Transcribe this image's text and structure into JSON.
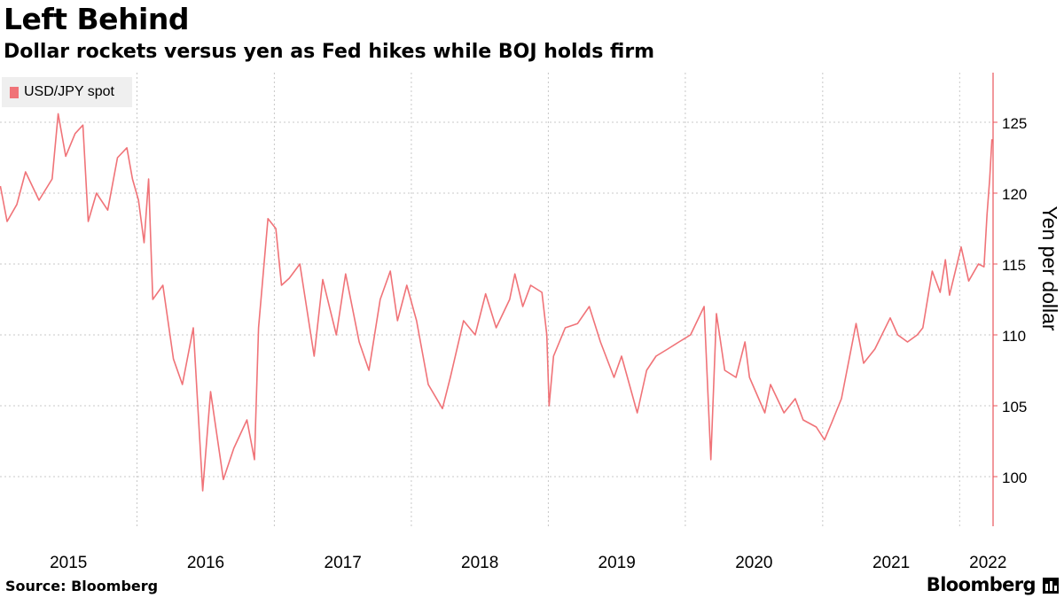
{
  "header": {
    "title": "Left Behind",
    "subtitle": "Dollar rockets versus yen as Fed hikes while BOJ holds firm"
  },
  "footer": {
    "source": "Source: Bloomberg",
    "brand": "Bloomberg"
  },
  "colors": {
    "series": "#f07378",
    "grid": "#c8c8c8",
    "axis": "#e8555b",
    "legend_bg": "#efefef"
  },
  "chart_data": {
    "type": "line",
    "title": "Left Behind",
    "subtitle": "Dollar rockets versus yen as Fed hikes while BOJ holds firm",
    "ylabel": "Yen per dollar",
    "xlabel": "",
    "ylim": [
      96.5,
      128.5
    ],
    "xlim": [
      "2015-01-01",
      "2022-03-31"
    ],
    "y_ticks": [
      100,
      105,
      110,
      115,
      120,
      125
    ],
    "x_ticks": [
      "2015",
      "2016",
      "2017",
      "2018",
      "2019",
      "2020",
      "2021",
      "2022"
    ],
    "grid": true,
    "legend_position": "top-left",
    "series": [
      {
        "name": "USD/JPY spot",
        "points": [
          [
            "2015-01-02",
            120.5
          ],
          [
            "2015-01-20",
            118.0
          ],
          [
            "2015-02-15",
            119.2
          ],
          [
            "2015-03-10",
            121.5
          ],
          [
            "2015-04-15",
            119.5
          ],
          [
            "2015-05-20",
            121.0
          ],
          [
            "2015-06-05",
            125.6
          ],
          [
            "2015-06-25",
            122.6
          ],
          [
            "2015-07-20",
            124.2
          ],
          [
            "2015-08-10",
            124.8
          ],
          [
            "2015-08-24",
            118.0
          ],
          [
            "2015-09-15",
            120.0
          ],
          [
            "2015-10-15",
            118.8
          ],
          [
            "2015-11-10",
            122.5
          ],
          [
            "2015-12-05",
            123.2
          ],
          [
            "2015-12-20",
            121.0
          ],
          [
            "2016-01-05",
            119.5
          ],
          [
            "2016-01-20",
            116.5
          ],
          [
            "2016-02-01",
            121.0
          ],
          [
            "2016-02-12",
            112.5
          ],
          [
            "2016-03-10",
            113.5
          ],
          [
            "2016-04-07",
            108.3
          ],
          [
            "2016-05-01",
            106.5
          ],
          [
            "2016-05-30",
            110.5
          ],
          [
            "2016-06-24",
            99.0
          ],
          [
            "2016-07-15",
            106.0
          ],
          [
            "2016-08-18",
            99.8
          ],
          [
            "2016-09-15",
            102.0
          ],
          [
            "2016-10-20",
            104.0
          ],
          [
            "2016-11-09",
            101.2
          ],
          [
            "2016-11-20",
            110.5
          ],
          [
            "2016-12-15",
            118.2
          ],
          [
            "2017-01-05",
            117.5
          ],
          [
            "2017-01-20",
            113.5
          ],
          [
            "2017-02-10",
            114.0
          ],
          [
            "2017-03-10",
            115.0
          ],
          [
            "2017-04-17",
            108.5
          ],
          [
            "2017-05-10",
            113.9
          ],
          [
            "2017-06-15",
            110.0
          ],
          [
            "2017-07-10",
            114.3
          ],
          [
            "2017-08-15",
            109.5
          ],
          [
            "2017-09-10",
            107.5
          ],
          [
            "2017-10-10",
            112.5
          ],
          [
            "2017-11-06",
            114.5
          ],
          [
            "2017-11-25",
            111.0
          ],
          [
            "2017-12-20",
            113.5
          ],
          [
            "2018-01-15",
            111.0
          ],
          [
            "2018-02-15",
            106.5
          ],
          [
            "2018-03-25",
            104.8
          ],
          [
            "2018-04-15",
            107.0
          ],
          [
            "2018-05-20",
            111.0
          ],
          [
            "2018-06-20",
            110.0
          ],
          [
            "2018-07-18",
            112.9
          ],
          [
            "2018-08-15",
            110.5
          ],
          [
            "2018-09-20",
            112.5
          ],
          [
            "2018-10-04",
            114.3
          ],
          [
            "2018-10-25",
            112.0
          ],
          [
            "2018-11-15",
            113.5
          ],
          [
            "2018-12-15",
            113.0
          ],
          [
            "2018-12-28",
            110.0
          ],
          [
            "2019-01-03",
            105.0
          ],
          [
            "2019-01-15",
            108.5
          ],
          [
            "2019-02-15",
            110.5
          ],
          [
            "2019-03-20",
            110.8
          ],
          [
            "2019-04-20",
            112.0
          ],
          [
            "2019-05-20",
            109.5
          ],
          [
            "2019-06-25",
            107.0
          ],
          [
            "2019-07-15",
            108.5
          ],
          [
            "2019-08-26",
            104.5
          ],
          [
            "2019-09-20",
            107.5
          ],
          [
            "2019-10-15",
            108.5
          ],
          [
            "2019-11-15",
            109.0
          ],
          [
            "2019-12-15",
            109.5
          ],
          [
            "2020-01-15",
            110.0
          ],
          [
            "2020-02-20",
            112.0
          ],
          [
            "2020-03-09",
            101.2
          ],
          [
            "2020-03-24",
            111.5
          ],
          [
            "2020-04-15",
            107.5
          ],
          [
            "2020-05-15",
            107.0
          ],
          [
            "2020-06-08",
            109.5
          ],
          [
            "2020-06-20",
            107.0
          ],
          [
            "2020-07-31",
            104.5
          ],
          [
            "2020-08-15",
            106.5
          ],
          [
            "2020-09-20",
            104.5
          ],
          [
            "2020-10-20",
            105.5
          ],
          [
            "2020-11-10",
            104.0
          ],
          [
            "2020-12-15",
            103.5
          ],
          [
            "2021-01-06",
            102.6
          ],
          [
            "2021-01-25",
            103.8
          ],
          [
            "2021-02-20",
            105.5
          ],
          [
            "2021-03-31",
            110.8
          ],
          [
            "2021-04-20",
            108.0
          ],
          [
            "2021-05-20",
            109.0
          ],
          [
            "2021-06-30",
            111.2
          ],
          [
            "2021-07-20",
            110.0
          ],
          [
            "2021-08-15",
            109.5
          ],
          [
            "2021-09-10",
            110.0
          ],
          [
            "2021-09-25",
            110.5
          ],
          [
            "2021-10-20",
            114.5
          ],
          [
            "2021-11-10",
            113.0
          ],
          [
            "2021-11-24",
            115.3
          ],
          [
            "2021-12-05",
            112.8
          ],
          [
            "2022-01-05",
            116.2
          ],
          [
            "2022-01-25",
            113.8
          ],
          [
            "2022-02-20",
            115.0
          ],
          [
            "2022-03-07",
            114.8
          ],
          [
            "2022-03-15",
            118.5
          ],
          [
            "2022-03-22",
            121.0
          ],
          [
            "2022-03-28",
            123.8
          ]
        ]
      }
    ]
  }
}
